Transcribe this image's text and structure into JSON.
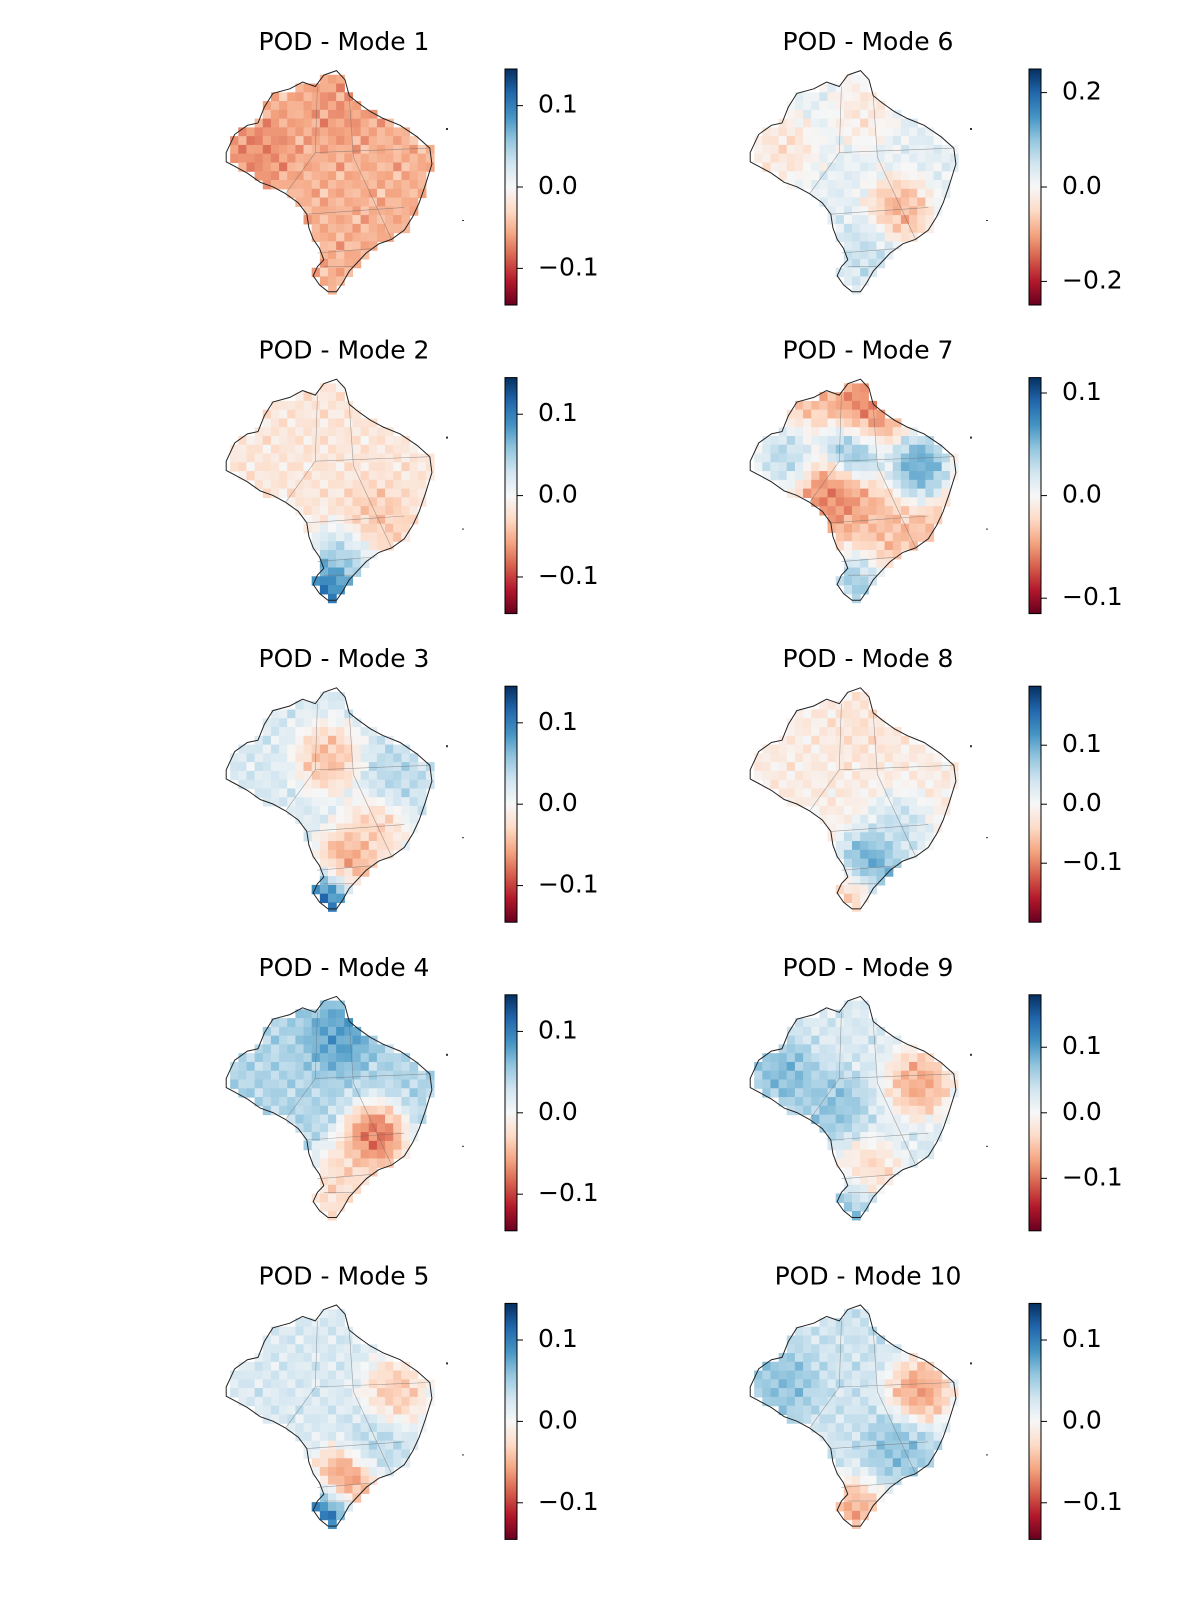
{
  "chart_data": [
    {
      "type": "heatmap",
      "title": "POD - Mode 1",
      "colormap": "RdBu",
      "colorbar": {
        "range": [
          -0.145,
          0.145
        ],
        "ticks": [
          {
            "label": "0.1",
            "value": 0.1
          },
          {
            "label": "0.0",
            "value": 0.0
          },
          {
            "label": "−0.1",
            "value": -0.1
          }
        ]
      },
      "pattern": {
        "base": -0.35,
        "regions": [
          {
            "name": "north",
            "value": -0.45
          },
          {
            "name": "northwest",
            "value": -0.5
          }
        ]
      }
    },
    {
      "type": "heatmap",
      "title": "POD - Mode 2",
      "colormap": "RdBu",
      "colorbar": {
        "range": [
          -0.145,
          0.145
        ],
        "ticks": [
          {
            "label": "0.1",
            "value": 0.1
          },
          {
            "label": "0.0",
            "value": 0.0
          },
          {
            "label": "−0.1",
            "value": -0.1
          }
        ]
      },
      "pattern": {
        "base": -0.12,
        "regions": [
          {
            "name": "far-south",
            "value": 0.9
          },
          {
            "name": "south",
            "value": 0.35
          },
          {
            "name": "southeast",
            "value": -0.3
          }
        ]
      }
    },
    {
      "type": "heatmap",
      "title": "POD - Mode 3",
      "colormap": "RdBu",
      "colorbar": {
        "range": [
          -0.145,
          0.145
        ],
        "ticks": [
          {
            "label": "0.1",
            "value": 0.1
          },
          {
            "label": "0.0",
            "value": 0.0
          },
          {
            "label": "−0.1",
            "value": -0.1
          }
        ]
      },
      "pattern": {
        "base": 0.15,
        "regions": [
          {
            "name": "far-south",
            "value": 0.95
          },
          {
            "name": "south",
            "value": -0.6
          },
          {
            "name": "southeast",
            "value": -0.3
          },
          {
            "name": "east",
            "value": 0.3
          },
          {
            "name": "center-north",
            "value": -0.4
          }
        ]
      }
    },
    {
      "type": "heatmap",
      "title": "POD - Mode 4",
      "colormap": "RdBu",
      "colorbar": {
        "range": [
          -0.145,
          0.145
        ],
        "ticks": [
          {
            "label": "0.1",
            "value": 0.1
          },
          {
            "label": "0.0",
            "value": 0.0
          },
          {
            "label": "−0.1",
            "value": -0.1
          }
        ]
      },
      "pattern": {
        "base": 0.3,
        "regions": [
          {
            "name": "north",
            "value": 0.6
          },
          {
            "name": "southeast",
            "value": -0.75
          },
          {
            "name": "south",
            "value": -0.3
          },
          {
            "name": "far-south",
            "value": -0.25
          }
        ]
      }
    },
    {
      "type": "heatmap",
      "title": "POD - Mode 5",
      "colormap": "RdBu",
      "colorbar": {
        "range": [
          -0.145,
          0.145
        ],
        "ticks": [
          {
            "label": "0.1",
            "value": 0.1
          },
          {
            "label": "0.0",
            "value": 0.0
          },
          {
            "label": "−0.1",
            "value": -0.1
          }
        ]
      },
      "pattern": {
        "base": 0.15,
        "regions": [
          {
            "name": "far-south",
            "value": 0.95
          },
          {
            "name": "south",
            "value": -0.7
          },
          {
            "name": "east",
            "value": -0.35
          },
          {
            "name": "southeast",
            "value": 0.3
          }
        ]
      }
    },
    {
      "type": "heatmap",
      "title": "POD - Mode 6",
      "colormap": "RdBu",
      "colorbar": {
        "range": [
          -0.25,
          0.25
        ],
        "ticks": [
          {
            "label": "0.2",
            "value": 0.2
          },
          {
            "label": "0.0",
            "value": 0.0
          },
          {
            "label": "−0.2",
            "value": -0.2
          }
        ]
      },
      "pattern": {
        "base": 0.1,
        "regions": [
          {
            "name": "north",
            "value": -0.15
          },
          {
            "name": "northwest",
            "value": -0.2
          },
          {
            "name": "southeast",
            "value": -0.45
          },
          {
            "name": "south",
            "value": 0.25
          }
        ]
      }
    },
    {
      "type": "heatmap",
      "title": "POD - Mode 7",
      "colormap": "RdBu",
      "colorbar": {
        "range": [
          -0.115,
          0.115
        ],
        "ticks": [
          {
            "label": "0.1",
            "value": 0.1
          },
          {
            "label": "0.0",
            "value": 0.0
          },
          {
            "label": "−0.1",
            "value": -0.1
          }
        ]
      },
      "pattern": {
        "base": -0.3,
        "regions": [
          {
            "name": "center-north",
            "value": 0.75
          },
          {
            "name": "northwest",
            "value": 0.4
          },
          {
            "name": "east",
            "value": 0.7
          },
          {
            "name": "far-south",
            "value": 0.5
          },
          {
            "name": "north",
            "value": -0.6
          },
          {
            "name": "center",
            "value": -0.55
          }
        ]
      }
    },
    {
      "type": "heatmap",
      "title": "POD - Mode 8",
      "colormap": "RdBu",
      "colorbar": {
        "range": [
          -0.2,
          0.2
        ],
        "ticks": [
          {
            "label": "0.1",
            "value": 0.1
          },
          {
            "label": "0.0",
            "value": 0.0
          },
          {
            "label": "−0.1",
            "value": -0.1
          }
        ]
      },
      "pattern": {
        "base": -0.08,
        "regions": [
          {
            "name": "south",
            "value": 0.7
          },
          {
            "name": "southeast",
            "value": 0.3
          },
          {
            "name": "far-south",
            "value": -0.35
          },
          {
            "name": "north",
            "value": -0.15
          }
        ]
      }
    },
    {
      "type": "heatmap",
      "title": "POD - Mode 9",
      "colormap": "RdBu",
      "colorbar": {
        "range": [
          -0.18,
          0.18
        ],
        "ticks": [
          {
            "label": "0.1",
            "value": 0.1
          },
          {
            "label": "0.0",
            "value": 0.0
          },
          {
            "label": "−0.1",
            "value": -0.1
          }
        ]
      },
      "pattern": {
        "base": 0.15,
        "regions": [
          {
            "name": "northwest",
            "value": 0.5
          },
          {
            "name": "center",
            "value": 0.45
          },
          {
            "name": "east",
            "value": -0.5
          },
          {
            "name": "south",
            "value": -0.3
          },
          {
            "name": "far-south",
            "value": 0.45
          }
        ]
      }
    },
    {
      "type": "heatmap",
      "title": "POD - Mode 10",
      "colormap": "RdBu",
      "colorbar": {
        "range": [
          -0.145,
          0.145
        ],
        "ticks": [
          {
            "label": "0.1",
            "value": 0.1
          },
          {
            "label": "0.0",
            "value": 0.0
          },
          {
            "label": "−0.1",
            "value": -0.1
          }
        ]
      },
      "pattern": {
        "base": 0.2,
        "regions": [
          {
            "name": "northwest",
            "value": 0.45
          },
          {
            "name": "east",
            "value": -0.55
          },
          {
            "name": "southeast",
            "value": 0.45
          },
          {
            "name": "far-south",
            "value": -0.5
          }
        ]
      }
    }
  ]
}
